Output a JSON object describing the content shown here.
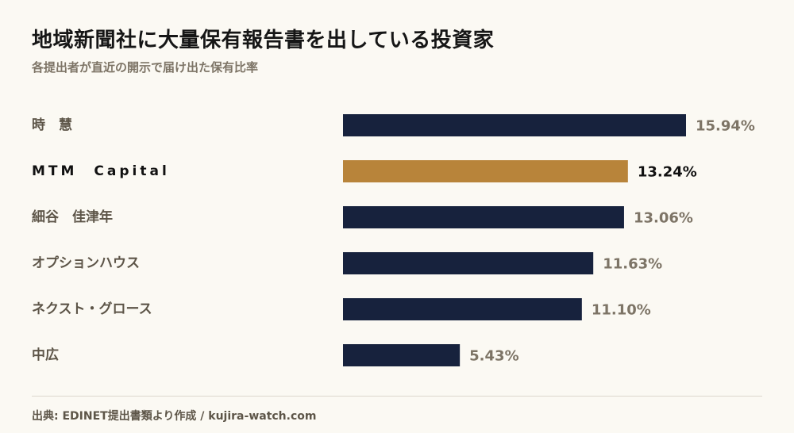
{
  "header": {
    "title": "地域新聞社に大量保有報告書を出している投資家",
    "subtitle": "各提出者が直近の開示で届け出た保有比率"
  },
  "footer": {
    "source": "出典: EDINET提出書類より作成 / kujira-watch.com"
  },
  "colors": {
    "bar_default": "#17223d",
    "bar_highlight": "#b8843a",
    "label_default": "#5d5548",
    "label_highlight": "#111111",
    "value_default": "#7d7466",
    "value_highlight": "#111111"
  },
  "chart_data": {
    "type": "bar",
    "orientation": "horizontal",
    "title": "地域新聞社に大量保有報告書を出している投資家",
    "subtitle": "各提出者が直近の開示で届け出た保有比率",
    "categories": [
      "時　慧",
      "MTM　Capital",
      "細谷　佳津年",
      "オプションハウス",
      "ネクスト・グロース",
      "中広"
    ],
    "values": [
      15.94,
      13.24,
      13.06,
      11.63,
      11.1,
      5.43
    ],
    "value_labels": [
      "15.94%",
      "13.24%",
      "13.06%",
      "11.63%",
      "11.10%",
      "5.43%"
    ],
    "highlight_index": 1,
    "xlim": [
      0,
      15.94
    ],
    "grid": false,
    "legend": "none"
  }
}
